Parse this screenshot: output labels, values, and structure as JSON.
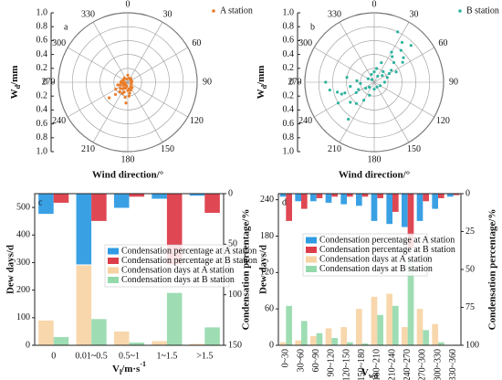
{
  "chart_data": [
    {
      "type": "polar-scatter",
      "panel": "a",
      "x_label": "Wind direction/°",
      "y_label": [
        "W",
        "d",
        "/mm"
      ],
      "rlim": [
        0,
        1
      ],
      "rticks": [
        0,
        0.2,
        0.4,
        0.6,
        0.8,
        {
          "value": 1,
          "label": "1.0"
        }
      ],
      "thetaticks": [
        0,
        30,
        60,
        90,
        120,
        150,
        180,
        210,
        240,
        270,
        300,
        330
      ],
      "series": [
        {
          "name": "A station",
          "color": "#ea7d2a",
          "theta": [
            180,
            200,
            210,
            220,
            230,
            240,
            250,
            260,
            270,
            190,
            170,
            160,
            150,
            140,
            120,
            100,
            80,
            60,
            40,
            20,
            0,
            340,
            320,
            300,
            280,
            265,
            245,
            225,
            205,
            185,
            175,
            215,
            235,
            255,
            195,
            230,
            250,
            200,
            170,
            220
          ],
          "r": [
            0.12,
            0.15,
            0.1,
            0.18,
            0.14,
            0.2,
            0.12,
            0.08,
            0.1,
            0.22,
            0.1,
            0.12,
            0.08,
            0.1,
            0.06,
            0.05,
            0.06,
            0.05,
            0.07,
            0.06,
            0.1,
            0.05,
            0.08,
            0.07,
            0.09,
            0.05,
            0.06,
            0.25,
            0.18,
            0.3,
            0.2,
            0.05,
            0.08,
            0.15,
            0.06,
            0.35,
            0.04,
            0.09,
            0.16,
            0.12
          ]
        }
      ]
    },
    {
      "type": "polar-scatter",
      "panel": "b",
      "x_label": "Wind direction/°",
      "y_label": [
        "W",
        "d",
        "/mm"
      ],
      "rlim": [
        0,
        1
      ],
      "rticks": [
        0,
        0.2,
        0.4,
        0.6,
        0.8,
        {
          "value": 1,
          "label": "1.0"
        }
      ],
      "thetaticks": [
        0,
        30,
        60,
        90,
        120,
        150,
        180,
        210,
        240,
        270,
        300,
        330
      ],
      "series": [
        {
          "name": "B station",
          "color": "#2fb3a0",
          "theta": [
            20,
            30,
            35,
            40,
            45,
            50,
            55,
            60,
            25,
            40,
            50,
            65,
            70,
            30,
            45,
            90,
            120,
            150,
            180,
            200,
            210,
            220,
            230,
            240,
            250,
            260,
            270,
            280,
            245,
            235,
            255,
            265,
            225,
            300,
            320,
            340,
            10,
            0,
            215,
            240,
            250,
            275,
            260,
            35,
            55
          ],
          "r": [
            0.3,
            0.5,
            0.7,
            0.6,
            0.4,
            0.55,
            0.3,
            0.25,
            0.8,
            0.2,
            0.15,
            0.35,
            0.2,
            0.1,
            0.75,
            0.15,
            0.1,
            0.08,
            0.1,
            0.2,
            0.3,
            0.4,
            0.45,
            0.6,
            0.5,
            0.35,
            0.7,
            0.4,
            0.25,
            0.15,
            0.55,
            0.2,
            0.1,
            0.1,
            0.05,
            0.12,
            0.2,
            0.15,
            0.65,
            0.3,
            0.45,
            0.25,
            0.65,
            0.45,
            0.5
          ]
        }
      ]
    },
    {
      "type": "bar",
      "panel": "c",
      "y_label": "Dew days/d",
      "y2_label": "Condensation percentage/%",
      "x_label": [
        "V",
        "l",
        "/m·s",
        "-1"
      ],
      "categories": [
        "0",
        "0.01~0.5",
        "0.5~1",
        "1~1.5",
        ">1.5"
      ],
      "ylim": [
        0,
        550
      ],
      "yticks": [
        0,
        100,
        200,
        300,
        400,
        500
      ],
      "y2lim": [
        0,
        150
      ],
      "y2ticks": [
        0,
        50,
        100,
        150
      ],
      "y2_inverted": true,
      "series": [
        {
          "name": "Condensation percentage at A station",
          "color": "#2f9be3",
          "axis": "y2",
          "values": [
            20,
            70,
            14,
            5,
            2
          ]
        },
        {
          "name": "Condensation percentage at B station",
          "color": "#dd3d4a",
          "axis": "y2",
          "values": [
            9,
            27,
            3,
            70,
            19
          ]
        },
        {
          "name": "Condensation days at A station",
          "color": "#f7d3a3",
          "values": [
            90,
            290,
            50,
            15,
            5
          ]
        },
        {
          "name": "Condensation days at B station",
          "color": "#93d9ab",
          "values": [
            30,
            95,
            10,
            190,
            65
          ]
        }
      ]
    },
    {
      "type": "bar",
      "panel": "d",
      "y_label": "Dew days/d",
      "y2_label": "Condensation percentage/%",
      "x_label": [
        "V",
        "wd"
      ],
      "categories": [
        "0~30",
        "30~60",
        "60~90",
        "90~120",
        "120~150",
        "150~180",
        "180~210",
        "210~240",
        "240~270",
        "270~300",
        "300~330",
        "330~360"
      ],
      "ylim": [
        0,
        250
      ],
      "yticks": [
        0,
        60,
        120,
        180,
        240
      ],
      "y2lim": [
        0,
        100
      ],
      "y2ticks": [
        0,
        25,
        50,
        75,
        100
      ],
      "y2_inverted": true,
      "series": [
        {
          "name": "Condensation percentage at A station",
          "color": "#2f9be3",
          "axis": "y2",
          "values": [
            2,
            5,
            5,
            6,
            7,
            8,
            18,
            20,
            22,
            18,
            10,
            2
          ]
        },
        {
          "name": "Condensation percentage at B station",
          "color": "#dd3d4a",
          "axis": "y2",
          "values": [
            18,
            10,
            3,
            2,
            2,
            2,
            3,
            12,
            36,
            5,
            3,
            1
          ]
        },
        {
          "name": "Condensation days at A station",
          "color": "#f7d3a3",
          "values": [
            5,
            8,
            15,
            28,
            30,
            60,
            80,
            85,
            30,
            60,
            35,
            0
          ]
        },
        {
          "name": "Condensation days at B station",
          "color": "#93d9ab",
          "values": [
            65,
            40,
            20,
            12,
            5,
            3,
            50,
            65,
            140,
            25,
            5,
            1
          ]
        }
      ]
    }
  ]
}
